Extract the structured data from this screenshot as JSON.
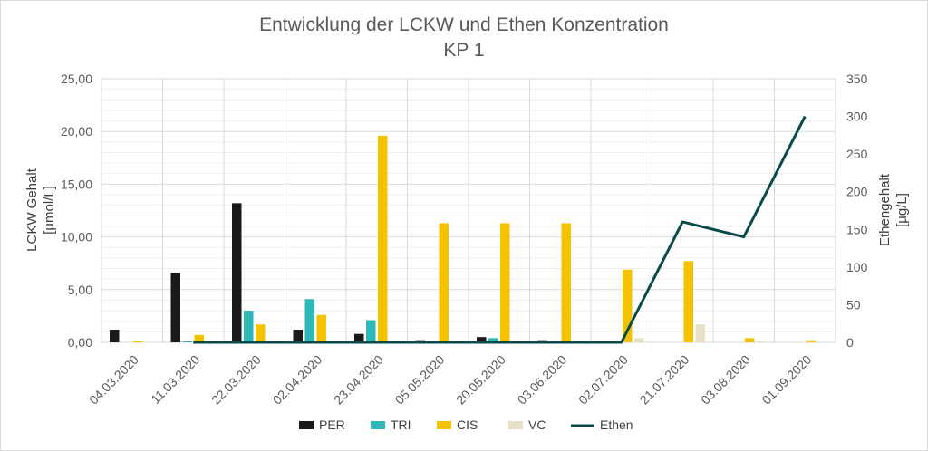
{
  "chart_data": {
    "type": "bar",
    "title": "Entwicklung der LCKW und Ethen Konzentration",
    "subtitle": "KP 1",
    "categories": [
      "04.03.2020",
      "11.03.2020",
      "22.03.2020",
      "02.04.2020",
      "23.04.2020",
      "05.05.2020",
      "20.05.2020",
      "03.06.2020",
      "02.07.2020",
      "21.07.2020",
      "03.08.2020",
      "01.09.2020"
    ],
    "y_left": {
      "label_line1": "LCKW Gehalt",
      "label_line2": "[µmol/L]",
      "ylim": [
        0,
        25
      ],
      "ticks": [
        "0,00",
        "5,00",
        "10,00",
        "15,00",
        "20,00",
        "25,00"
      ]
    },
    "y_right": {
      "label_line1": "Ethengehalt",
      "label_line2": "[µg/L]",
      "ylim": [
        0,
        350
      ],
      "ticks": [
        "0",
        "50",
        "100",
        "150",
        "200",
        "250",
        "300",
        "350"
      ]
    },
    "series": [
      {
        "name": "PER",
        "type": "bar",
        "axis": "left",
        "color": "#1a1a1a",
        "values": [
          1.2,
          6.6,
          13.2,
          1.2,
          0.8,
          0.2,
          0.5,
          0.2,
          0,
          0,
          0,
          0
        ]
      },
      {
        "name": "TRI",
        "type": "bar",
        "axis": "left",
        "color": "#2eb8b8",
        "values": [
          0,
          0.1,
          3.0,
          4.1,
          2.1,
          0.1,
          0.4,
          0.1,
          0,
          0,
          0,
          0
        ]
      },
      {
        "name": "CIS",
        "type": "bar",
        "axis": "left",
        "color": "#f5c200",
        "values": [
          0.1,
          0.7,
          1.7,
          2.6,
          19.6,
          11.3,
          11.3,
          11.3,
          6.9,
          7.7,
          0.4,
          0.2
        ]
      },
      {
        "name": "VC",
        "type": "bar",
        "axis": "left",
        "color": "#e8dfc8",
        "values": [
          0,
          0,
          0,
          0,
          0,
          0,
          0,
          0,
          0.4,
          1.7,
          0.1,
          0
        ]
      },
      {
        "name": "Ethen",
        "type": "line",
        "axis": "right",
        "color": "#0b4a4a",
        "values": [
          null,
          0,
          0,
          0,
          0,
          0,
          0,
          0,
          0,
          160,
          140,
          300
        ]
      }
    ],
    "grid": true,
    "legend_position": "bottom"
  }
}
